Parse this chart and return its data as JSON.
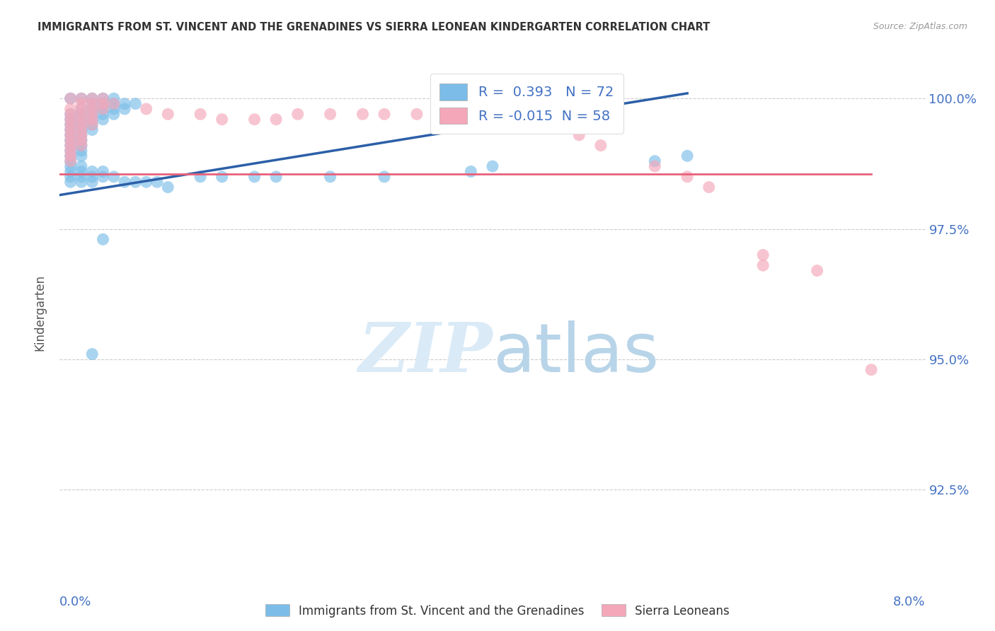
{
  "title": "IMMIGRANTS FROM ST. VINCENT AND THE GRENADINES VS SIERRA LEONEAN KINDERGARTEN CORRELATION CHART",
  "source": "Source: ZipAtlas.com",
  "ylabel": "Kindergarten",
  "ytick_labels": [
    "92.5%",
    "95.0%",
    "97.5%",
    "100.0%"
  ],
  "ytick_values": [
    0.925,
    0.95,
    0.975,
    1.0
  ],
  "xlim": [
    0.0,
    0.08
  ],
  "ylim": [
    0.91,
    1.008
  ],
  "legend_blue_label": "Immigrants from St. Vincent and the Grenadines",
  "legend_pink_label": "Sierra Leoneans",
  "R_blue": 0.393,
  "N_blue": 72,
  "R_pink": -0.015,
  "N_pink": 58,
  "blue_color": "#7bbde8",
  "pink_color": "#f4a7b9",
  "blue_line_color": "#2c5fa8",
  "pink_line_color": "#e8607a",
  "watermark_color": "#daeaf7",
  "blue_dots_x": [
    0.001,
    0.002,
    0.003,
    0.004,
    0.005,
    0.003,
    0.004,
    0.005,
    0.006,
    0.007,
    0.002,
    0.003,
    0.004,
    0.005,
    0.006,
    0.001,
    0.002,
    0.003,
    0.004,
    0.005,
    0.001,
    0.002,
    0.003,
    0.004,
    0.001,
    0.002,
    0.003,
    0.001,
    0.002,
    0.003,
    0.001,
    0.002,
    0.001,
    0.002,
    0.001,
    0.002,
    0.001,
    0.002,
    0.001,
    0.002,
    0.001,
    0.001,
    0.002,
    0.001,
    0.002,
    0.003,
    0.004,
    0.001,
    0.002,
    0.003,
    0.004,
    0.005,
    0.001,
    0.002,
    0.003,
    0.006,
    0.007,
    0.008,
    0.009,
    0.01,
    0.013,
    0.015,
    0.018,
    0.02,
    0.025,
    0.03,
    0.038,
    0.04,
    0.055,
    0.058,
    0.004,
    0.003
  ],
  "blue_dots_y": [
    1.0,
    1.0,
    1.0,
    1.0,
    1.0,
    0.999,
    0.999,
    0.999,
    0.999,
    0.999,
    0.998,
    0.998,
    0.998,
    0.998,
    0.998,
    0.997,
    0.997,
    0.997,
    0.997,
    0.997,
    0.996,
    0.996,
    0.996,
    0.996,
    0.995,
    0.995,
    0.995,
    0.994,
    0.994,
    0.994,
    0.993,
    0.993,
    0.992,
    0.992,
    0.991,
    0.991,
    0.99,
    0.99,
    0.989,
    0.989,
    0.988,
    0.987,
    0.987,
    0.986,
    0.986,
    0.986,
    0.986,
    0.985,
    0.985,
    0.985,
    0.985,
    0.985,
    0.984,
    0.984,
    0.984,
    0.984,
    0.984,
    0.984,
    0.984,
    0.983,
    0.985,
    0.985,
    0.985,
    0.985,
    0.985,
    0.985,
    0.986,
    0.987,
    0.988,
    0.989,
    0.973,
    0.951
  ],
  "pink_dots_x": [
    0.001,
    0.002,
    0.003,
    0.004,
    0.002,
    0.003,
    0.004,
    0.005,
    0.001,
    0.002,
    0.003,
    0.004,
    0.001,
    0.002,
    0.003,
    0.001,
    0.002,
    0.003,
    0.001,
    0.002,
    0.003,
    0.001,
    0.002,
    0.001,
    0.002,
    0.001,
    0.002,
    0.001,
    0.002,
    0.001,
    0.001,
    0.001,
    0.008,
    0.01,
    0.013,
    0.015,
    0.018,
    0.02,
    0.022,
    0.025,
    0.028,
    0.03,
    0.033,
    0.035,
    0.038,
    0.04,
    0.04,
    0.042,
    0.045,
    0.048,
    0.05,
    0.055,
    0.058,
    0.06,
    0.065,
    0.065,
    0.07,
    0.075
  ],
  "pink_dots_y": [
    1.0,
    1.0,
    1.0,
    1.0,
    0.999,
    0.999,
    0.999,
    0.999,
    0.998,
    0.998,
    0.998,
    0.998,
    0.997,
    0.997,
    0.997,
    0.996,
    0.996,
    0.996,
    0.995,
    0.995,
    0.995,
    0.994,
    0.994,
    0.993,
    0.993,
    0.992,
    0.992,
    0.991,
    0.991,
    0.99,
    0.989,
    0.988,
    0.998,
    0.997,
    0.997,
    0.996,
    0.996,
    0.996,
    0.997,
    0.997,
    0.997,
    0.997,
    0.997,
    0.997,
    0.997,
    0.998,
    0.996,
    0.996,
    0.995,
    0.993,
    0.991,
    0.987,
    0.985,
    0.983,
    0.97,
    0.968,
    0.967,
    0.948
  ],
  "blue_line_x0": 0.0,
  "blue_line_y0": 0.9815,
  "blue_line_x1": 0.058,
  "blue_line_y1": 1.001,
  "pink_line_x0": 0.0,
  "pink_line_y0": 0.9855,
  "pink_line_x1": 0.075,
  "pink_line_y1": 0.9855
}
